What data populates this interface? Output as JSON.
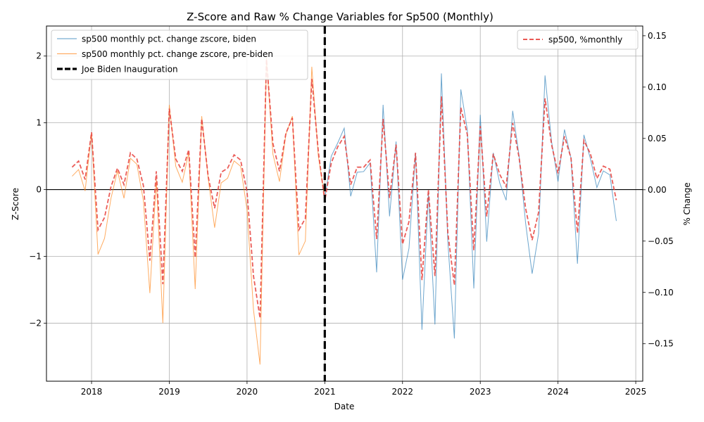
{
  "chart_data": {
    "type": "line",
    "title": "Z-Score and Raw % Change Variables for Sp500 (Monthly)",
    "xlabel": "Date",
    "ylabel_left": "Z-Score",
    "ylabel_right": "% Change",
    "xlim": [
      2017.42,
      2025.09
    ],
    "ylim_left": [
      -2.87,
      2.45
    ],
    "ylim_right": [
      -0.1865,
      0.1595
    ],
    "x_ticks": [
      2018,
      2019,
      2020,
      2021,
      2022,
      2023,
      2024,
      2025
    ],
    "x_tick_labels": [
      "2018",
      "2019",
      "2020",
      "2021",
      "2022",
      "2023",
      "2024",
      "2025"
    ],
    "y_ticks_left": [
      -2,
      -1,
      0,
      1,
      2
    ],
    "y_tick_labels_left": [
      "−2",
      "−1",
      "0",
      "1",
      "2"
    ],
    "y_ticks_right": [
      -0.15,
      -0.1,
      -0.05,
      0.0,
      0.05,
      0.1,
      0.15
    ],
    "y_tick_labels_right": [
      "−0.15",
      "−0.10",
      "−0.05",
      "0.00",
      "0.05",
      "0.10",
      "0.15"
    ],
    "grid": true,
    "legend_left": {
      "placement": "top-left",
      "entries": [
        {
          "label": "sp500 monthly pct. change zscore, biden",
          "color": "#1f77b4",
          "style": "solid"
        },
        {
          "label": "sp500 monthly pct. change zscore, pre-biden",
          "color": "#ff7f0e",
          "style": "solid"
        },
        {
          "label": "Joe Biden Inauguration",
          "color": "#000000",
          "style": "dashed"
        }
      ]
    },
    "legend_right": {
      "placement": "top-right",
      "entries": [
        {
          "label": "sp500, %monthly",
          "color": "#e8413c",
          "style": "dashed"
        }
      ]
    },
    "vline": {
      "x": 2021.0,
      "label": "Joe Biden Inauguration"
    },
    "hline": {
      "y": 0
    },
    "series": [
      {
        "name": "sp500 monthly pct. change zscore, pre-biden",
        "axis": "left",
        "color": "#ff7f0e",
        "x": [
          2017.75,
          2017.833,
          2017.917,
          2018.0,
          2018.083,
          2018.167,
          2018.25,
          2018.333,
          2018.417,
          2018.5,
          2018.583,
          2018.667,
          2018.75,
          2018.833,
          2018.917,
          2019.0,
          2019.083,
          2019.167,
          2019.25,
          2019.333,
          2019.417,
          2019.5,
          2019.583,
          2019.667,
          2019.75,
          2019.833,
          2019.917,
          2020.0,
          2020.083,
          2020.167,
          2020.25,
          2020.333,
          2020.417,
          2020.5,
          2020.583,
          2020.667,
          2020.75,
          2020.833,
          2020.917,
          2021.0
        ],
        "values": [
          0.2,
          0.3,
          -0.02,
          0.85,
          -0.97,
          -0.73,
          -0.13,
          0.28,
          -0.13,
          0.47,
          0.38,
          -0.17,
          -1.55,
          0.15,
          -2.0,
          1.27,
          0.35,
          0.11,
          0.55,
          -1.49,
          1.1,
          0.17,
          -0.57,
          0.1,
          0.17,
          0.43,
          0.35,
          -0.3,
          -1.8,
          -2.62,
          1.97,
          0.53,
          0.12,
          0.83,
          1.1,
          -0.98,
          -0.77,
          1.84,
          0.5,
          -0.13
        ]
      },
      {
        "name": "sp500 monthly pct. change zscore, biden",
        "axis": "left",
        "color": "#1f77b4",
        "x": [
          2021.0,
          2021.083,
          2021.167,
          2021.25,
          2021.333,
          2021.417,
          2021.5,
          2021.583,
          2021.667,
          2021.75,
          2021.833,
          2021.917,
          2022.0,
          2022.083,
          2022.167,
          2022.25,
          2022.333,
          2022.417,
          2022.5,
          2022.583,
          2022.667,
          2022.75,
          2022.833,
          2022.917,
          2023.0,
          2023.083,
          2023.167,
          2023.25,
          2023.333,
          2023.417,
          2023.5,
          2023.583,
          2023.667,
          2023.75,
          2023.833,
          2023.917,
          2024.0,
          2024.083,
          2024.167,
          2024.25,
          2024.333,
          2024.417,
          2024.5,
          2024.583,
          2024.667,
          2024.75
        ],
        "values": [
          -0.13,
          0.5,
          0.7,
          0.92,
          -0.1,
          0.26,
          0.27,
          0.4,
          -1.24,
          1.27,
          -0.4,
          0.72,
          -1.35,
          -0.88,
          0.55,
          -2.1,
          -0.05,
          -2.02,
          1.74,
          -0.78,
          -2.23,
          1.5,
          0.9,
          -1.48,
          1.12,
          -0.78,
          0.55,
          0.1,
          -0.16,
          1.18,
          0.5,
          -0.5,
          -1.26,
          -0.66,
          1.71,
          0.72,
          0.12,
          0.9,
          0.47,
          -1.11,
          0.82,
          0.46,
          0.03,
          0.28,
          0.22,
          -0.47
        ]
      },
      {
        "name": "sp500, %monthly",
        "axis": "right",
        "color": "#e8413c",
        "x": [
          2017.75,
          2017.833,
          2017.917,
          2018.0,
          2018.083,
          2018.167,
          2018.25,
          2018.333,
          2018.417,
          2018.5,
          2018.583,
          2018.667,
          2018.75,
          2018.833,
          2018.917,
          2019.0,
          2019.083,
          2019.167,
          2019.25,
          2019.333,
          2019.417,
          2019.5,
          2019.583,
          2019.667,
          2019.75,
          2019.833,
          2019.917,
          2020.0,
          2020.083,
          2020.167,
          2020.25,
          2020.333,
          2020.417,
          2020.5,
          2020.583,
          2020.667,
          2020.75,
          2020.833,
          2020.917,
          2021.0,
          2021.083,
          2021.167,
          2021.25,
          2021.333,
          2021.417,
          2021.5,
          2021.583,
          2021.667,
          2021.75,
          2021.833,
          2021.917,
          2022.0,
          2022.083,
          2022.167,
          2022.25,
          2022.333,
          2022.417,
          2022.5,
          2022.583,
          2022.667,
          2022.75,
          2022.833,
          2022.917,
          2023.0,
          2023.083,
          2023.167,
          2023.25,
          2023.333,
          2023.417,
          2023.5,
          2023.583,
          2023.667,
          2023.75,
          2023.833,
          2023.917,
          2024.0,
          2024.083,
          2024.167,
          2024.25,
          2024.333,
          2024.417,
          2024.5,
          2024.583,
          2024.667,
          2024.75
        ],
        "values": [
          0.022,
          0.028,
          0.01,
          0.056,
          -0.039,
          -0.027,
          0.003,
          0.021,
          0.005,
          0.036,
          0.03,
          0.004,
          -0.069,
          0.018,
          -0.092,
          0.079,
          0.03,
          0.018,
          0.039,
          -0.066,
          0.069,
          0.013,
          -0.018,
          0.017,
          0.021,
          0.034,
          0.029,
          -0.002,
          -0.084,
          -0.125,
          0.127,
          0.045,
          0.018,
          0.055,
          0.07,
          -0.039,
          -0.028,
          0.108,
          0.037,
          -0.011,
          0.026,
          0.042,
          0.052,
          0.005,
          0.022,
          0.022,
          0.029,
          -0.048,
          0.069,
          -0.008,
          0.044,
          -0.053,
          -0.031,
          0.036,
          -0.088,
          0.0,
          -0.084,
          0.091,
          -0.042,
          -0.093,
          0.08,
          0.054,
          -0.059,
          0.062,
          -0.026,
          0.035,
          0.015,
          0.003,
          0.065,
          0.031,
          -0.018,
          -0.049,
          -0.022,
          0.089,
          0.044,
          0.016,
          0.052,
          0.031,
          -0.042,
          0.048,
          0.035,
          0.011,
          0.023,
          0.02,
          -0.01
        ]
      }
    ]
  }
}
